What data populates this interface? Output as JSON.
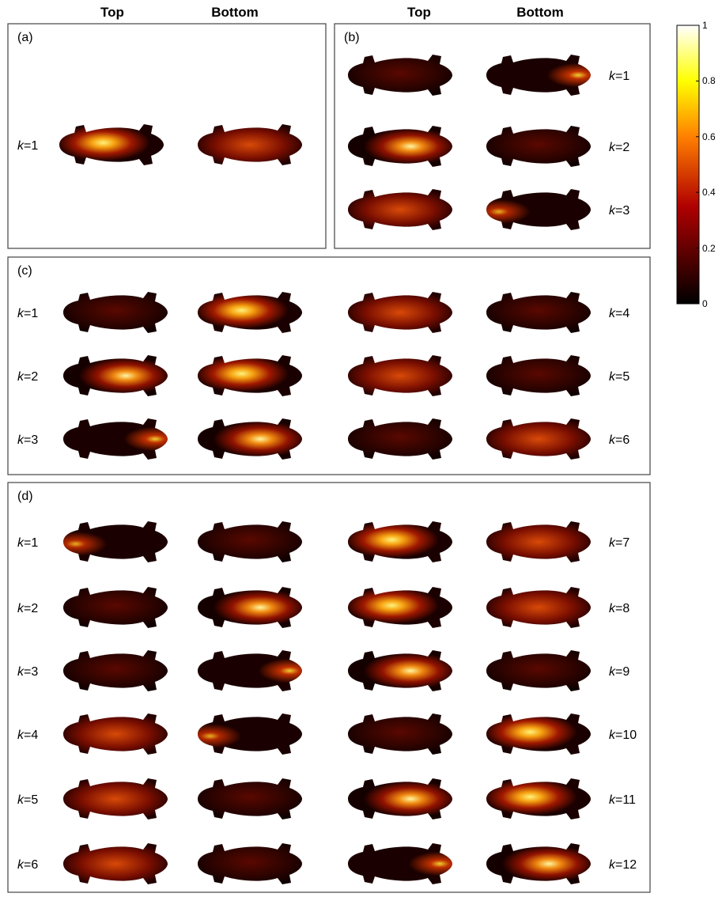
{
  "column_headers": [
    "Top",
    "Bottom",
    "Top",
    "Bottom"
  ],
  "panels": [
    {
      "label": "(a)",
      "left_labels": [
        "k=1"
      ]
    },
    {
      "label": "(b)",
      "right_labels": [
        "k=1",
        "k=2",
        "k=3"
      ]
    },
    {
      "label": "(c)",
      "left_labels": [
        "k=1",
        "k=2",
        "k=3"
      ],
      "right_labels": [
        "k=4",
        "k=5",
        "k=6"
      ]
    },
    {
      "label": "(d)",
      "left_labels": [
        "k=1",
        "k=2",
        "k=3",
        "k=4",
        "k=5",
        "k=6"
      ],
      "right_labels": [
        "k=7",
        "k=8",
        "k=9",
        "k=10",
        "k=11",
        "k=12"
      ]
    }
  ],
  "colorbar": {
    "range": [
      0,
      1
    ],
    "ticks": [
      0,
      0.2,
      0.4,
      0.6,
      0.8,
      1
    ]
  }
}
